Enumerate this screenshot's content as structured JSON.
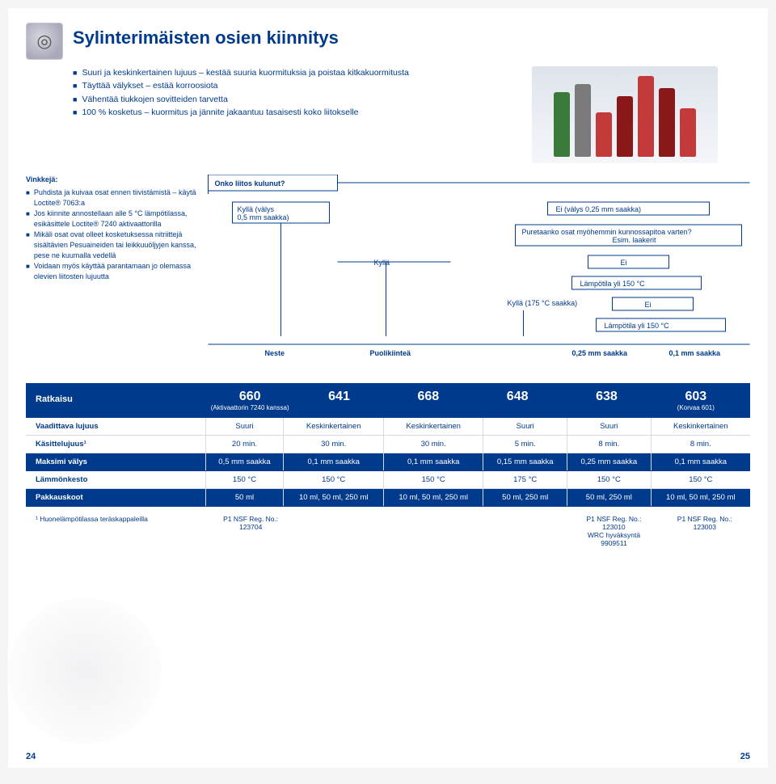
{
  "title": "Sylinterimäisten osien kiinnitys",
  "intro_bullets": [
    "Suuri ja keskinkertainen lujuus – kestää suuria kuormituksia ja poistaa kitkakuormitusta",
    "Täyttää välykset – estää korroosiota",
    "Vähentää tiukkojen sovitteiden tarvetta",
    "100 % kosketus – kuormitus ja jännite jakaantuu tasaisesti koko liitokselle"
  ],
  "flow": {
    "q_root": "Onko liitos kulunut?",
    "left_yes": "Kyllä (välys\n0,5 mm saakka)",
    "right_no": "Ei (välys 0,25 mm saakka)",
    "q_disassemble": "Puretaanko osat myöhemmin kunnossapitoa varten?\nEsim. laakerit",
    "mid_yes": "Kyllä",
    "mid_no": "Ei",
    "temp_q": "Lämpötila yli 150 °C",
    "temp_yes": "Kyllä (175 °C saakka)",
    "temp_no": "Ei",
    "temp_q2": "Lämpötila yli 150 °C",
    "leaf_neste": "Neste",
    "leaf_puoli": "Puolikiinteä",
    "leaf_025": "0,25 mm saakka",
    "leaf_01": "0,1 mm saakka"
  },
  "tips_title": "Vinkkejä:",
  "tips": [
    "Puhdista ja kuivaa osat ennen tiivistämistä – käytä Loctite® 7063:a",
    "Jos kiinnite annostellaan alle 5 °C lämpötilassa, esikäsittele Loctite® 7240 aktivaattorilla",
    "Mikäli osat ovat olleet kosketuksessa nitriittejä sisältävien Pesuaineiden tai leikkuuöljyjen kanssa, pese ne kuumalla vedellä",
    "Voidaan myös käyttää parantamaan jo olemassa olevien liitosten lujuutta"
  ],
  "solutions_label": "Ratkaisu",
  "solutions": [
    {
      "num": "660",
      "sub": "(Aktivaattorin 7240 kanssa)"
    },
    {
      "num": "641",
      "sub": ""
    },
    {
      "num": "668",
      "sub": ""
    },
    {
      "num": "648",
      "sub": ""
    },
    {
      "num": "638",
      "sub": ""
    },
    {
      "num": "603",
      "sub": "(Korvaa 601)"
    }
  ],
  "spec_rows": [
    {
      "label": "Vaadittava lujuus",
      "cells": [
        "Suuri",
        "Keskinkertainen",
        "Keskinkertainen",
        "Suuri",
        "Suuri",
        "Keskinkertainen"
      ],
      "dark": false
    },
    {
      "label": "Käsittelujuus¹",
      "cells": [
        "20 min.",
        "30 min.",
        "30 min.",
        "5 min.",
        "8 min.",
        "8 min."
      ],
      "dark": false
    },
    {
      "label": "Maksimi välys",
      "cells": [
        "0,5 mm saakka",
        "0,1 mm saakka",
        "0,1 mm saakka",
        "0,15 mm saakka",
        "0,25 mm saakka",
        "0,1 mm saakka"
      ],
      "dark": true
    },
    {
      "label": "Lämmönkesto",
      "cells": [
        "150 °C",
        "150 °C",
        "150 °C",
        "175 °C",
        "150 °C",
        "150 °C"
      ],
      "dark": false
    },
    {
      "label": "Pakkauskoot",
      "cells": [
        "50 ml",
        "10 ml, 50 ml, 250 ml",
        "10 ml, 50 ml, 250 ml",
        "50 ml, 250 ml",
        "50 ml, 250 ml",
        "10 ml, 50 ml, 250 ml"
      ],
      "dark": true
    }
  ],
  "footnote_label": "¹ Huonelämpötilassa teräskappaleilla",
  "footnotes": [
    "P1 NSF Reg. No.:\n123704",
    "",
    "",
    "",
    "P1 NSF Reg. No.:\n123010\nWRC hyväksyntä\n9909511",
    "P1 NSF Reg. No.:\n123003"
  ],
  "page_left": "24",
  "page_right": "25",
  "bottle_colors": [
    "#3a7a3a",
    "#7a7a7a",
    "#c23a3a",
    "#8a1818",
    "#c23a3a",
    "#8a1818",
    "#c23a3a"
  ],
  "bottle_heights": [
    80,
    90,
    55,
    75,
    100,
    85,
    60
  ]
}
